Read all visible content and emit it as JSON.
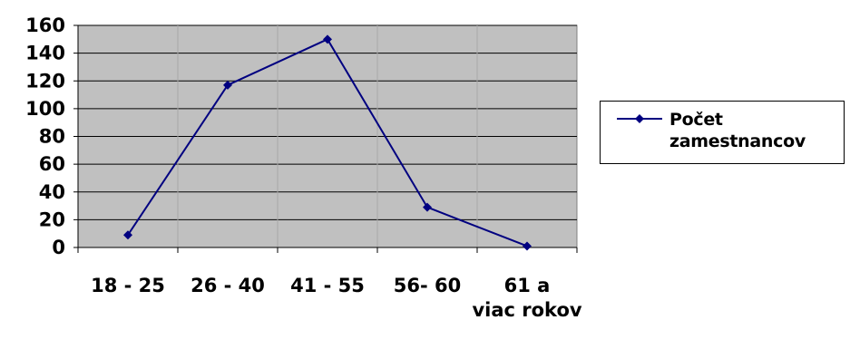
{
  "chart_data": {
    "type": "line",
    "categories": [
      "18 - 25",
      "26 - 40",
      "41 - 55",
      "56- 60",
      "61 a viac rokov"
    ],
    "series": [
      {
        "name": "Počet zamestnancov",
        "values": [
          9,
          117,
          150,
          29,
          1
        ],
        "color": "#000080"
      }
    ],
    "ylim": [
      0,
      160
    ],
    "yticks": [
      0,
      20,
      40,
      60,
      80,
      100,
      120,
      140,
      160
    ],
    "grid": true,
    "legend_position": "right",
    "plot_background": "#c0c0c0",
    "marker": "diamond"
  }
}
